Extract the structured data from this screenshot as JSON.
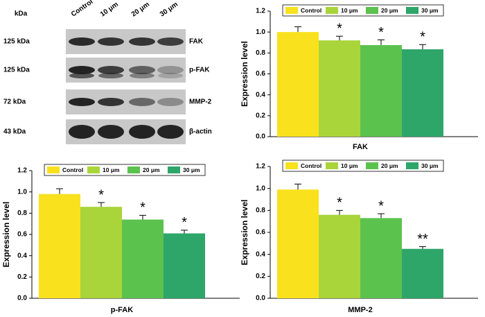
{
  "blot": {
    "unit_header": "kDa",
    "lanes": [
      "Control",
      "10 μm",
      "20 μm",
      "30 μm"
    ],
    "rows": [
      {
        "size": "125 kDa",
        "protein": "FAK"
      },
      {
        "size": "125 kDa",
        "protein": "p-FAK"
      },
      {
        "size": "72 kDa",
        "protein": "MMP-2"
      },
      {
        "size": "43 kDa",
        "protein": "β-actin"
      }
    ]
  },
  "chart_data": [
    {
      "type": "bar",
      "ylabel": "Expression level",
      "categories": [
        "FAK"
      ],
      "legend": "top",
      "ylim": [
        0,
        1.2
      ],
      "yticks": [
        {
          "value": 0,
          "label": "0.0"
        },
        0.2,
        0.4,
        0.6,
        0.8,
        {
          "value": 1,
          "label": "1.0"
        },
        1.2
      ],
      "series": [
        {
          "name": "Control",
          "color": "#f9e11e",
          "values": [
            1.0
          ],
          "errors": [
            0.05
          ]
        },
        {
          "name": "10 μm",
          "color": "#a9d53a",
          "values": [
            0.92
          ],
          "errors": [
            0.04
          ],
          "annotation": "*"
        },
        {
          "name": "20 μm",
          "color": "#5cc24e",
          "values": [
            0.875
          ],
          "errors": [
            0.05
          ],
          "annotation": "*"
        },
        {
          "name": "30 μm",
          "color": "#2ea66a",
          "values": [
            0.835
          ],
          "errors": [
            0.045
          ],
          "annotation": "*"
        }
      ]
    },
    {
      "type": "bar",
      "ylabel": "Expression level",
      "categories": [
        "p-FAK"
      ],
      "legend": "top",
      "ylim": [
        0,
        1.2
      ],
      "yticks": [
        {
          "value": 0,
          "label": "0.0"
        },
        0.2,
        0.4,
        0.6,
        0.8,
        {
          "value": 1,
          "label": "1.0"
        },
        1.2
      ],
      "series": [
        {
          "name": "Control",
          "color": "#f9e11e",
          "values": [
            0.98
          ],
          "errors": [
            0.05
          ]
        },
        {
          "name": "10 μm",
          "color": "#a9d53a",
          "values": [
            0.86
          ],
          "errors": [
            0.04
          ],
          "annotation": "*"
        },
        {
          "name": "20 μm",
          "color": "#5cc24e",
          "values": [
            0.74
          ],
          "errors": [
            0.04
          ],
          "annotation": "*"
        },
        {
          "name": "30 μm",
          "color": "#2ea66a",
          "values": [
            0.61
          ],
          "errors": [
            0.03
          ],
          "annotation": "*"
        }
      ]
    },
    {
      "type": "bar",
      "ylabel": "Expression level",
      "categories": [
        "MMP-2"
      ],
      "legend": "top",
      "ylim": [
        0,
        1.2
      ],
      "yticks": [
        {
          "value": 0,
          "label": "0.0"
        },
        0.2,
        0.4,
        0.6,
        0.8,
        {
          "value": 1,
          "label": "1.0"
        },
        1.2
      ],
      "series": [
        {
          "name": "Control",
          "color": "#f9e11e",
          "values": [
            0.99
          ],
          "errors": [
            0.05
          ]
        },
        {
          "name": "10 μm",
          "color": "#a9d53a",
          "values": [
            0.76
          ],
          "errors": [
            0.04
          ],
          "annotation": "*"
        },
        {
          "name": "20 μm",
          "color": "#5cc24e",
          "values": [
            0.73
          ],
          "errors": [
            0.04
          ],
          "annotation": "*"
        },
        {
          "name": "30 μm",
          "color": "#2ea66a",
          "values": [
            0.45
          ],
          "errors": [
            0.02
          ],
          "annotation": "**"
        }
      ]
    }
  ]
}
